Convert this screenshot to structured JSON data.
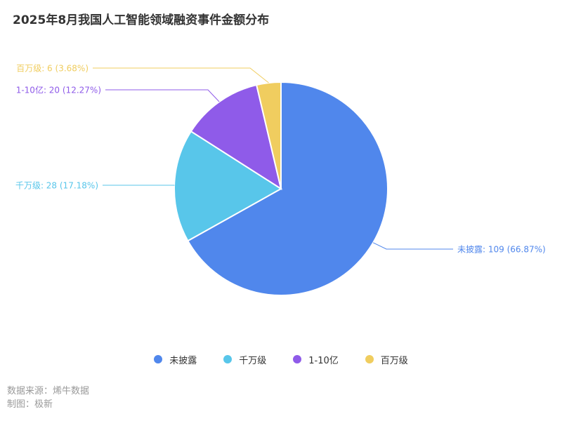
{
  "title": "2025年8月我国人工智能领域融资事件金额分布",
  "chart_data": {
    "type": "pie",
    "title": "2025年8月我国人工智能领域融资事件金额分布",
    "legend_position": "bottom",
    "slices": [
      {
        "name": "未披露",
        "value": 109,
        "percent": "66.87%",
        "label": "未披露: 109 (66.87%)",
        "color": "#5087EC"
      },
      {
        "name": "千万级",
        "value": 28,
        "percent": "17.18%",
        "label": "千万级: 28 (17.18%)",
        "color": "#58C6EA"
      },
      {
        "name": "1-10亿",
        "value": 20,
        "percent": "12.27%",
        "label": "1-10亿: 20 (12.27%)",
        "color": "#8F5BE9"
      },
      {
        "name": "百万级",
        "value": 6,
        "percent": "3.68%",
        "label": "百万级: 6 (3.68%)",
        "color": "#F0CD5F"
      }
    ]
  },
  "footer": {
    "source": "数据来源：烯牛数据",
    "made_by": "制图：极新"
  }
}
